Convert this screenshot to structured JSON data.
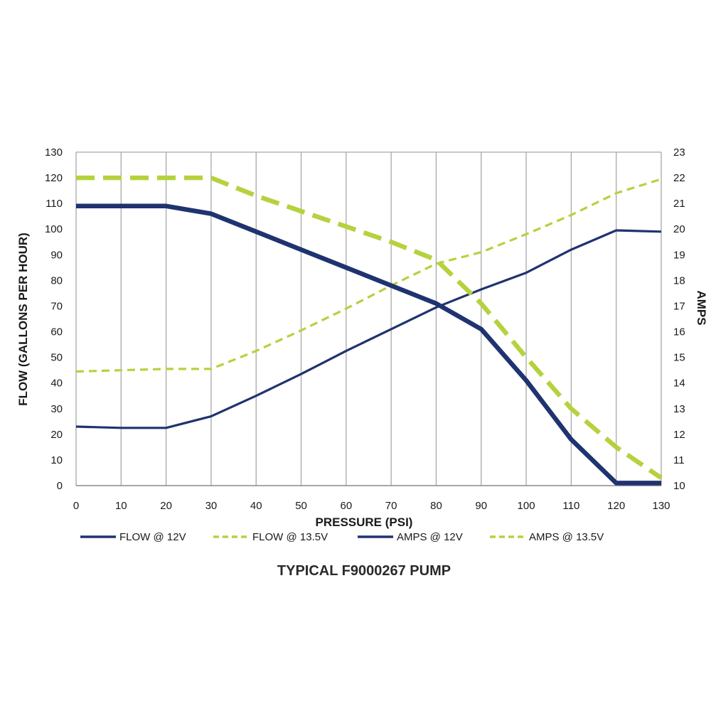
{
  "chart_data": {
    "type": "line",
    "title": "TYPICAL F9000267 PUMP",
    "xlabel": "PRESSURE (PSI)",
    "ylabel": "FLOW (GALLONS PER HOUR)",
    "y2label": "AMPS",
    "x": [
      0,
      10,
      20,
      30,
      40,
      50,
      60,
      70,
      80,
      90,
      100,
      110,
      120,
      130
    ],
    "xlim": [
      0,
      130
    ],
    "ylim": [
      0,
      130
    ],
    "y2lim": [
      10,
      23
    ],
    "xticks": [
      "0",
      "10",
      "20",
      "30",
      "40",
      "50",
      "60",
      "70",
      "80",
      "90",
      "100",
      "110",
      "120",
      "130"
    ],
    "yticks": [
      "0",
      "10",
      "20",
      "30",
      "40",
      "50",
      "60",
      "70",
      "80",
      "90",
      "100",
      "110",
      "120",
      "130"
    ],
    "y2ticks": [
      "10",
      "11",
      "12",
      "13",
      "14",
      "15",
      "16",
      "17",
      "18",
      "19",
      "20",
      "21",
      "22",
      "23"
    ],
    "grid": "vertical",
    "legend_position": "bottom",
    "colors": {
      "navy": "#1f3370",
      "green": "#b5d23e",
      "grid": "#a8a8a8"
    },
    "series": [
      {
        "name": "FLOW @ 12V",
        "axis": "left",
        "color": "#1f3370",
        "style": "solid",
        "weight": "heavy",
        "values": [
          109,
          109,
          109,
          106,
          99,
          92,
          85,
          78,
          71,
          61,
          41,
          18,
          1,
          1
        ]
      },
      {
        "name": "FLOW @ 13.5V",
        "axis": "left",
        "color": "#b5d23e",
        "style": "dashed",
        "weight": "heavy",
        "values": [
          120,
          120,
          120,
          120,
          113,
          107,
          101,
          95,
          88,
          71,
          50,
          30,
          15,
          3
        ]
      },
      {
        "name": "AMPS @ 12V",
        "axis": "right",
        "color": "#1f3370",
        "style": "solid",
        "weight": "light",
        "values": [
          12.3,
          12.25,
          12.25,
          12.7,
          13.5,
          14.35,
          15.25,
          16.1,
          16.95,
          17.65,
          18.3,
          19.2,
          19.95,
          19.9
        ]
      },
      {
        "name": "AMPS @ 13.5V",
        "axis": "right",
        "color": "#b5d23e",
        "style": "dashed",
        "weight": "light",
        "values": [
          14.45,
          14.5,
          14.55,
          14.55,
          15.25,
          16.05,
          16.9,
          17.8,
          18.65,
          19.1,
          19.8,
          20.55,
          21.4,
          21.95
        ]
      }
    ]
  }
}
